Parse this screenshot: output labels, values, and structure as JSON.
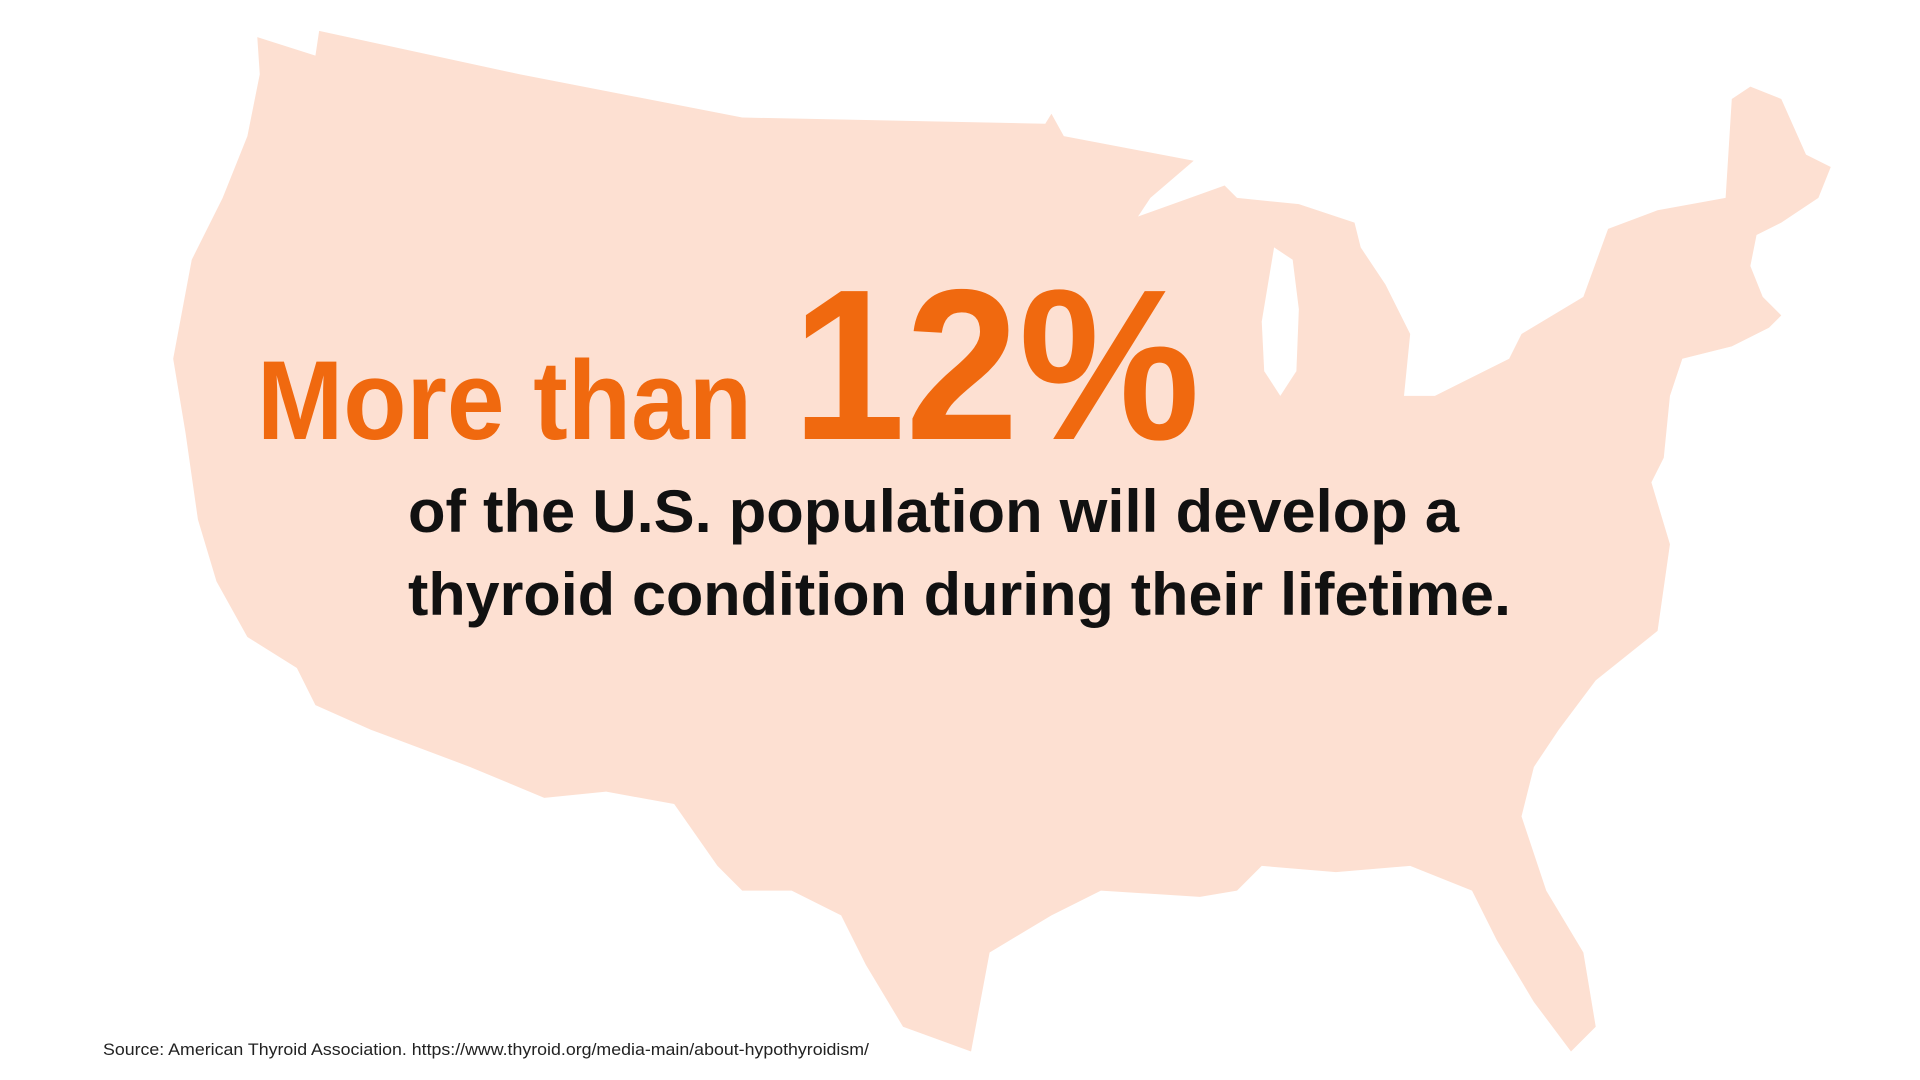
{
  "headline": {
    "lead": "More than",
    "stat": "12%"
  },
  "body": {
    "lines": [
      "of the U.S. population will develop a",
      "thyroid condition during their lifetime."
    ]
  },
  "source": "Source: American Thyroid Association. https://www.thyroid.org/media-main/about-hypothyroidism/"
}
